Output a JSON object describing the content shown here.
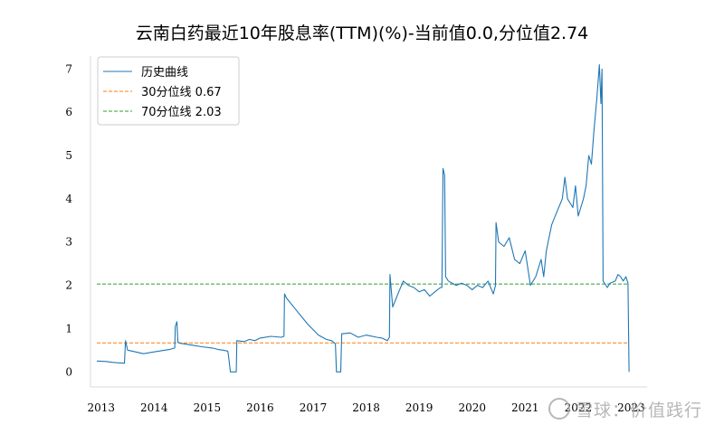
{
  "title": "云南白药最近10年股息率(TTM)(%)-当前值0.0,分位值2.74",
  "watermark": "雪球：价值践行",
  "chart_data": {
    "type": "line",
    "title": "云南白药最近10年股息率(TTM)(%)-当前值0.0,分位值2.74",
    "xlabel": "",
    "ylabel": "",
    "xlim": [
      2012.8,
      2023.3
    ],
    "ylim": [
      -0.35,
      7.3
    ],
    "x_ticks": [
      "2013",
      "2014",
      "2015",
      "2016",
      "2017",
      "2018",
      "2019",
      "2020",
      "2021",
      "2022",
      "2023"
    ],
    "y_ticks": [
      "0",
      "1",
      "2",
      "3",
      "4",
      "5",
      "6",
      "7"
    ],
    "grid": false,
    "legend_position": "top-left",
    "series": [
      {
        "name": "历史曲线",
        "color": "#1f77b4",
        "style": "solid",
        "points": [
          [
            2012.92,
            0.25
          ],
          [
            2013.1,
            0.24
          ],
          [
            2013.2,
            0.22
          ],
          [
            2013.3,
            0.21
          ],
          [
            2013.44,
            0.2
          ],
          [
            2013.46,
            0.72
          ],
          [
            2013.5,
            0.5
          ],
          [
            2013.65,
            0.46
          ],
          [
            2013.8,
            0.42
          ],
          [
            2014.0,
            0.46
          ],
          [
            2014.2,
            0.5
          ],
          [
            2014.3,
            0.52
          ],
          [
            2014.39,
            0.55
          ],
          [
            2014.4,
            1.05
          ],
          [
            2014.43,
            1.16
          ],
          [
            2014.45,
            0.68
          ],
          [
            2014.5,
            0.66
          ],
          [
            2014.7,
            0.62
          ],
          [
            2014.9,
            0.58
          ],
          [
            2015.1,
            0.55
          ],
          [
            2015.2,
            0.52
          ],
          [
            2015.3,
            0.5
          ],
          [
            2015.39,
            0.48
          ],
          [
            2015.4,
            0.4
          ],
          [
            2015.44,
            0.0
          ],
          [
            2015.5,
            0.0
          ],
          [
            2015.55,
            0.0
          ],
          [
            2015.56,
            0.72
          ],
          [
            2015.7,
            0.7
          ],
          [
            2015.8,
            0.75
          ],
          [
            2015.9,
            0.72
          ],
          [
            2016.0,
            0.78
          ],
          [
            2016.2,
            0.82
          ],
          [
            2016.4,
            0.8
          ],
          [
            2016.45,
            0.82
          ],
          [
            2016.46,
            1.8
          ],
          [
            2016.5,
            1.7
          ],
          [
            2016.7,
            1.4
          ],
          [
            2016.9,
            1.1
          ],
          [
            2017.1,
            0.85
          ],
          [
            2017.25,
            0.75
          ],
          [
            2017.35,
            0.72
          ],
          [
            2017.42,
            0.65
          ],
          [
            2017.44,
            0.0
          ],
          [
            2017.52,
            0.0
          ],
          [
            2017.54,
            0.88
          ],
          [
            2017.7,
            0.9
          ],
          [
            2017.85,
            0.8
          ],
          [
            2018.0,
            0.85
          ],
          [
            2018.2,
            0.8
          ],
          [
            2018.3,
            0.78
          ],
          [
            2018.4,
            0.72
          ],
          [
            2018.44,
            0.8
          ],
          [
            2018.45,
            2.25
          ],
          [
            2018.5,
            1.5
          ],
          [
            2018.6,
            1.8
          ],
          [
            2018.7,
            2.1
          ],
          [
            2018.8,
            2.0
          ],
          [
            2018.9,
            1.95
          ],
          [
            2019.0,
            1.85
          ],
          [
            2019.1,
            1.9
          ],
          [
            2019.2,
            1.75
          ],
          [
            2019.3,
            1.85
          ],
          [
            2019.4,
            1.95
          ],
          [
            2019.43,
            1.95
          ],
          [
            2019.45,
            4.7
          ],
          [
            2019.48,
            4.55
          ],
          [
            2019.5,
            2.2
          ],
          [
            2019.55,
            2.1
          ],
          [
            2019.7,
            2.0
          ],
          [
            2019.8,
            2.05
          ],
          [
            2019.9,
            2.0
          ],
          [
            2020.0,
            1.9
          ],
          [
            2020.1,
            2.0
          ],
          [
            2020.2,
            1.95
          ],
          [
            2020.3,
            2.1
          ],
          [
            2020.4,
            1.8
          ],
          [
            2020.44,
            2.0
          ],
          [
            2020.45,
            3.45
          ],
          [
            2020.5,
            3.0
          ],
          [
            2020.6,
            2.9
          ],
          [
            2020.7,
            3.1
          ],
          [
            2020.8,
            2.6
          ],
          [
            2020.9,
            2.5
          ],
          [
            2021.0,
            2.8
          ],
          [
            2021.1,
            2.0
          ],
          [
            2021.2,
            2.2
          ],
          [
            2021.3,
            2.6
          ],
          [
            2021.35,
            2.2
          ],
          [
            2021.4,
            2.8
          ],
          [
            2021.5,
            3.4
          ],
          [
            2021.6,
            3.7
          ],
          [
            2021.7,
            4.0
          ],
          [
            2021.75,
            4.5
          ],
          [
            2021.8,
            4.0
          ],
          [
            2021.9,
            3.8
          ],
          [
            2021.95,
            4.3
          ],
          [
            2022.0,
            3.6
          ],
          [
            2022.1,
            4.0
          ],
          [
            2022.15,
            4.3
          ],
          [
            2022.2,
            5.0
          ],
          [
            2022.25,
            4.8
          ],
          [
            2022.3,
            5.6
          ],
          [
            2022.35,
            6.3
          ],
          [
            2022.4,
            7.1
          ],
          [
            2022.43,
            6.2
          ],
          [
            2022.45,
            7.0
          ],
          [
            2022.47,
            2.1
          ],
          [
            2022.55,
            1.95
          ],
          [
            2022.6,
            2.05
          ],
          [
            2022.7,
            2.1
          ],
          [
            2022.75,
            2.25
          ],
          [
            2022.8,
            2.2
          ],
          [
            2022.85,
            2.1
          ],
          [
            2022.9,
            2.2
          ],
          [
            2022.94,
            2.05
          ],
          [
            2022.96,
            0.0
          ]
        ]
      },
      {
        "name": "30分位线 0.67",
        "color": "#ff7f0e",
        "style": "dashed",
        "points": [
          [
            2012.92,
            0.67
          ],
          [
            2022.96,
            0.67
          ]
        ]
      },
      {
        "name": "70分位线 2.03",
        "color": "#2ca02c",
        "style": "dashed",
        "points": [
          [
            2012.92,
            2.03
          ],
          [
            2022.96,
            2.03
          ]
        ]
      }
    ]
  }
}
